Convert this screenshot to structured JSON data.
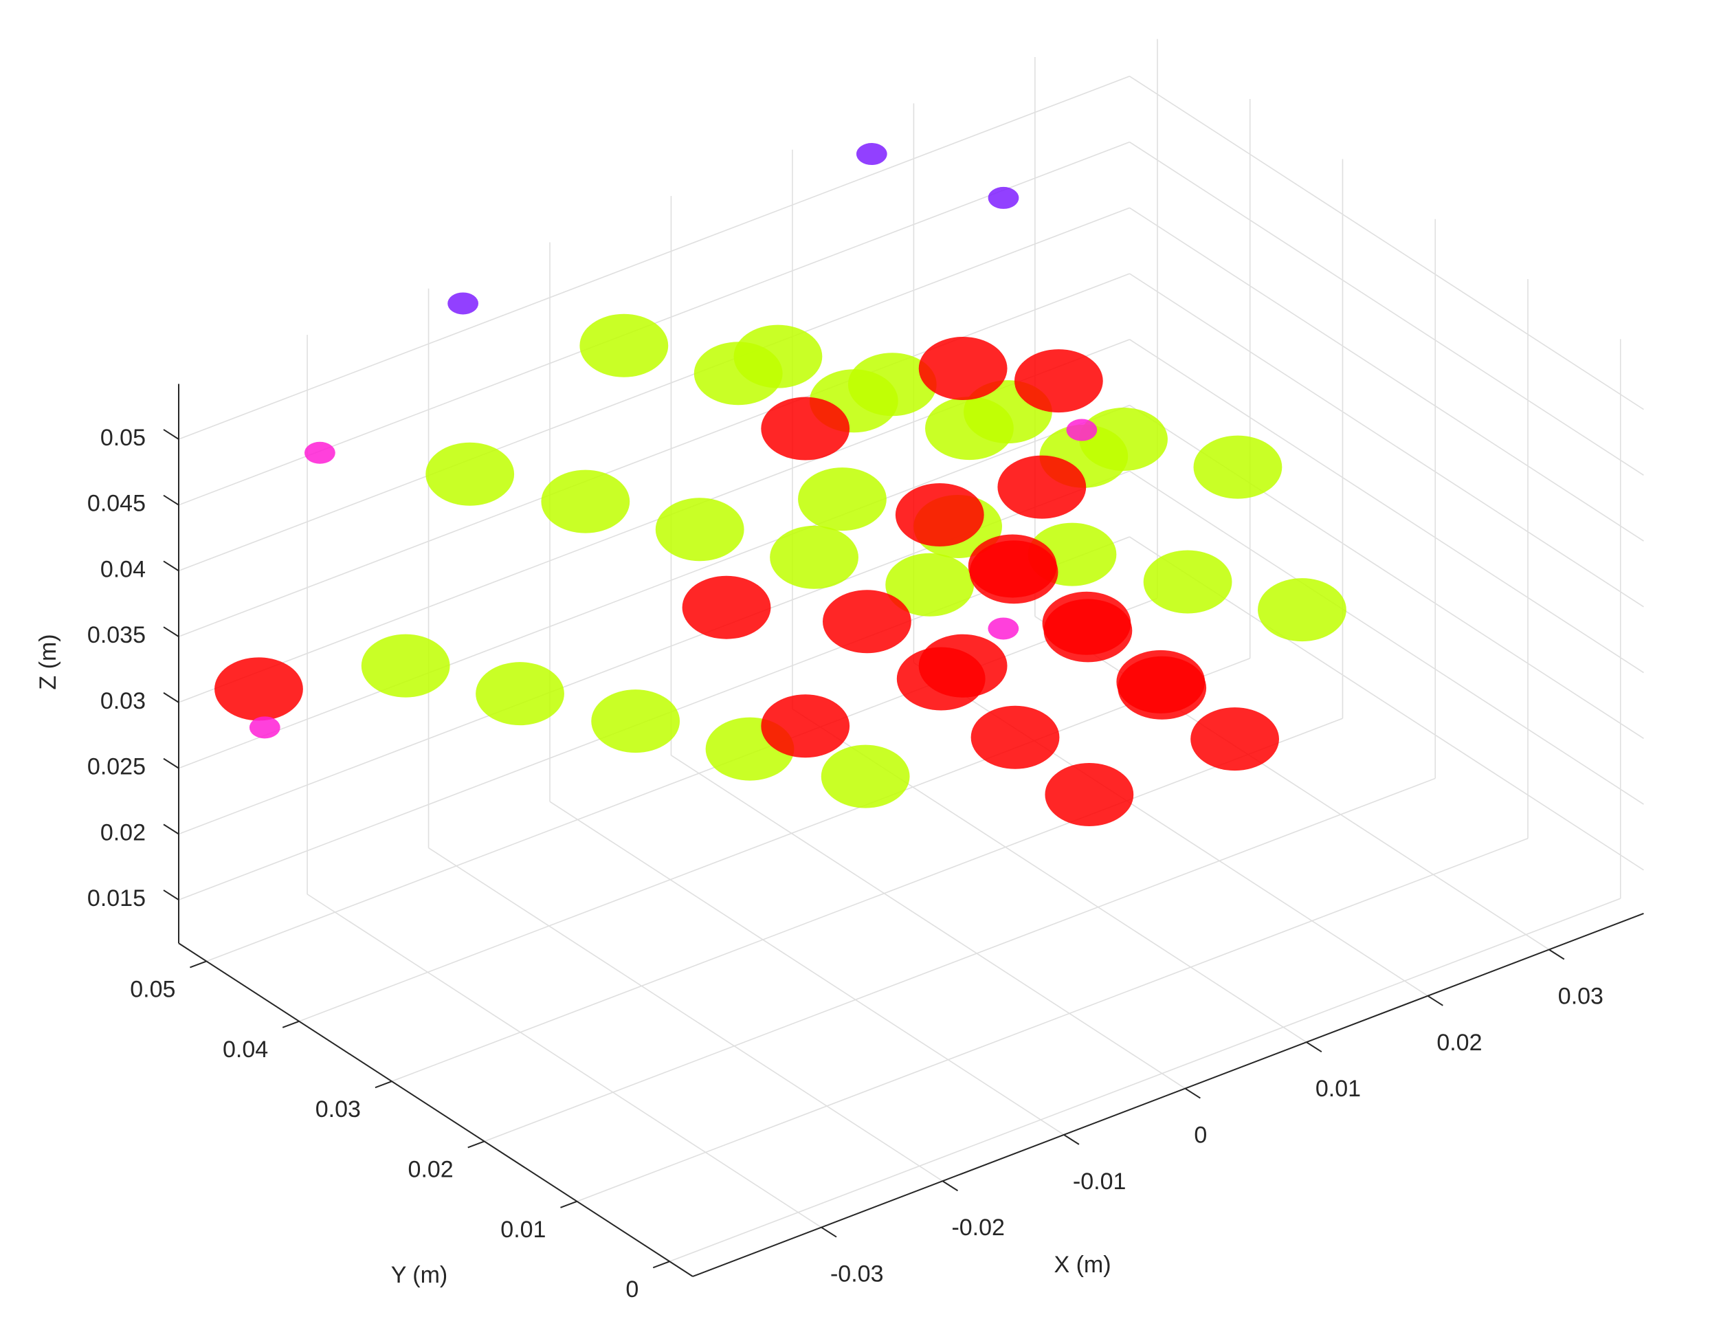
{
  "chart_data": {
    "type": "scatter3d",
    "xlabel": "X (m)",
    "ylabel": "Y (m)",
    "zlabel": "Z (m)",
    "xlim": [
      -0.0406,
      0.0378
    ],
    "ylim": [
      -0.0025,
      0.053
    ],
    "zlim": [
      0.0117,
      0.0542
    ],
    "xticks": [
      -0.03,
      -0.02,
      -0.01,
      0,
      0.01,
      0.02,
      0.03
    ],
    "yticks": [
      0,
      0.01,
      0.02,
      0.03,
      0.04,
      0.05
    ],
    "zticks": [
      0.015,
      0.02,
      0.025,
      0.03,
      0.035,
      0.04,
      0.045,
      0.05
    ],
    "grid": true,
    "series": [
      {
        "color": "#c0ff00",
        "x": [
          0.008,
          0.0027,
          -0.01,
          -0.0227,
          -0.028,
          0.0118,
          0.0064,
          -0.0063,
          -0.0189,
          -0.0243,
          0.0155,
          0.0102,
          -0.0025,
          -0.0152,
          -0.0205,
          0.0193,
          0.014,
          0.0013,
          -0.0115,
          -0.0168,
          0.023,
          0.0177,
          0.005,
          -0.0077,
          -0.013
        ],
        "y": [
          0.045,
          0.045,
          0.045,
          0.045,
          0.045,
          0.0375,
          0.0375,
          0.0375,
          0.0375,
          0.0375,
          0.03,
          0.03,
          0.03,
          0.03,
          0.03,
          0.0225,
          0.0225,
          0.0225,
          0.0225,
          0.0225,
          0.015,
          0.015,
          0.015,
          0.015,
          0.015
        ],
        "z": [
          0.032,
          0.0447,
          0.05,
          0.0447,
          0.032,
          0.032,
          0.0447,
          0.05,
          0.0447,
          0.032,
          0.032,
          0.0447,
          0.05,
          0.0447,
          0.032,
          0.032,
          0.0447,
          0.05,
          0.0447,
          0.032,
          0.032,
          0.0447,
          0.05,
          0.0447,
          0.032
        ]
      },
      {
        "color": "#ff0000",
        "x": [
          0.013,
          0.0065,
          -0.0065,
          -0.013,
          -0.0065,
          0.0065,
          0,
          0.006,
          -0.006,
          0,
          0.006,
          -0.006,
          0,
          0.006,
          -0.006,
          0,
          0.006,
          -0.006,
          -0.034,
          0.015
        ],
        "y": [
          0.03,
          0.03,
          0.03,
          0.03,
          0.03,
          0.03,
          0.024,
          0.024,
          0.024,
          0.016,
          0.016,
          0.016,
          0.008,
          0.008,
          0.008,
          0,
          0,
          0,
          0.053,
          0.0308
        ],
        "z": [
          0.038,
          0.0493,
          0.0493,
          0.038,
          0.0267,
          0.0267,
          0.0432,
          0.0372,
          0.0372,
          0.0425,
          0.0365,
          0.0365,
          0.0417,
          0.0357,
          0.0357,
          0.041,
          0.035,
          0.035,
          0.0287,
          0.045
        ]
      },
      {
        "color": "#7f1fff",
        "x": [
          0.0144,
          0.0232,
          -0.0193
        ],
        "y": [
          0.0502,
          0.0475,
          0.0502
        ],
        "z": [
          0.0536,
          0.0484,
          0.0541
        ]
      },
      {
        "color": "#ff1fd6",
        "x": [
          -0.0311,
          -0.0335,
          0.0169,
          0.0041
        ],
        "y": [
          0.0502,
          0.053,
          0.0308,
          0.0225
        ],
        "z": [
          0.0469,
          0.0256,
          0.0406,
          0.0338
        ]
      }
    ]
  }
}
